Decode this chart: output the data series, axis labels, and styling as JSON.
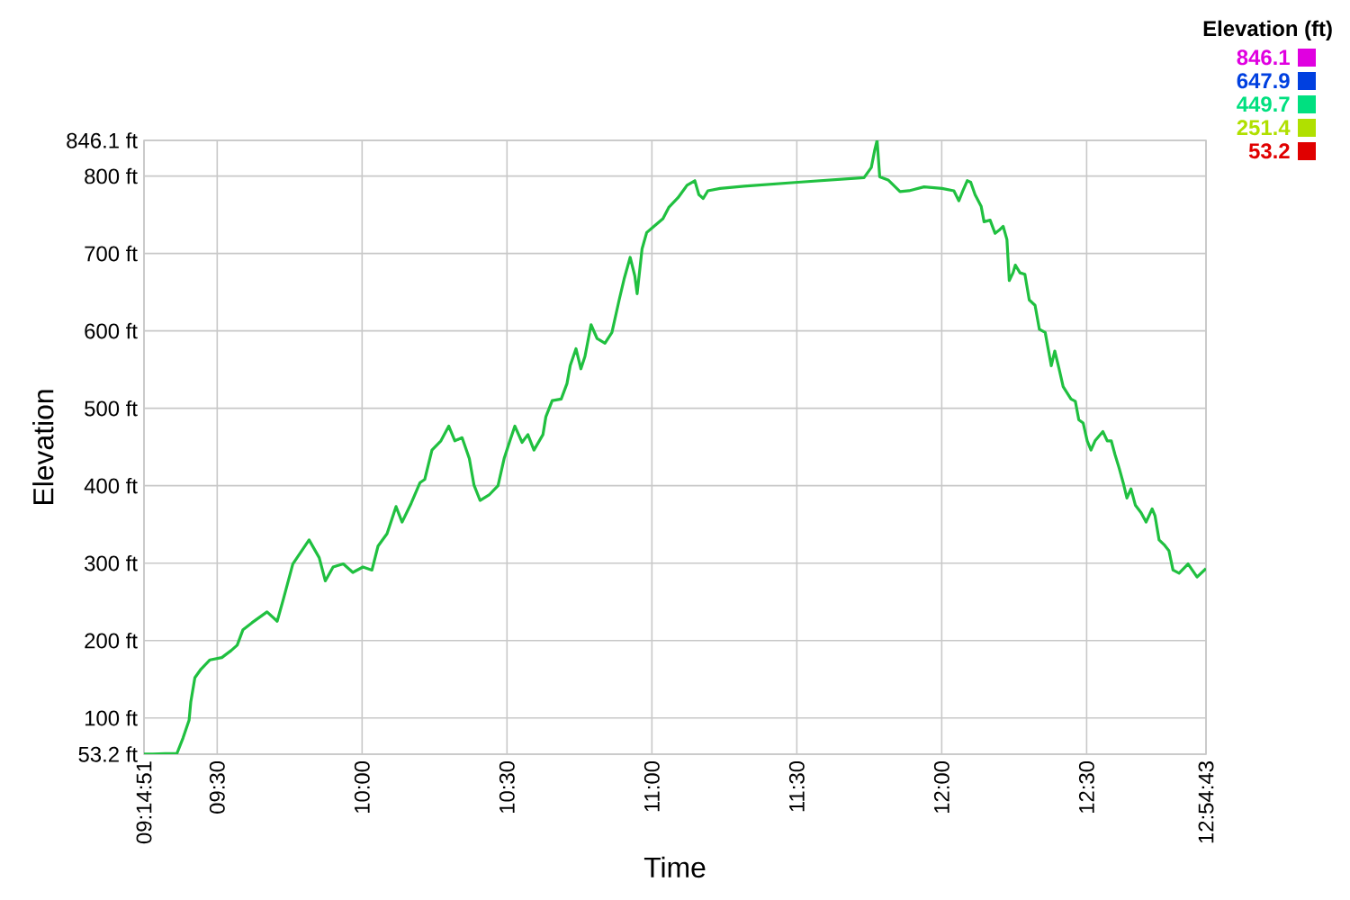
{
  "chart_data": {
    "type": "line",
    "xlabel": "Time",
    "ylabel": "Elevation",
    "clabel": "Elevation (ft)",
    "clim": [
      53.2,
      846.1
    ],
    "cticks": [
      53.2,
      251.4,
      449.7,
      647.9,
      846.1
    ],
    "xlim": [
      9.2475,
      12.9119
    ],
    "xticks": [
      {
        "value": 9.2475,
        "label": "09:14:51"
      },
      {
        "value": 9.5,
        "label": "09:30"
      },
      {
        "value": 10,
        "label": "10:00"
      },
      {
        "value": 10.5,
        "label": "10:30"
      },
      {
        "value": 11,
        "label": "11:00"
      },
      {
        "value": 11.5,
        "label": "11:30"
      },
      {
        "value": 12,
        "label": "12:00"
      },
      {
        "value": 12.5,
        "label": "12:30"
      },
      {
        "value": 12.9119,
        "label": "12:54:43"
      }
    ],
    "ylim": [
      53.2,
      846.1
    ],
    "yticks": [
      {
        "value": 53.2,
        "label": "53.2 ft"
      },
      {
        "value": 100,
        "label": "100 ft"
      },
      {
        "value": 200,
        "label": "200 ft"
      },
      {
        "value": 300,
        "label": "300 ft"
      },
      {
        "value": 400,
        "label": "400 ft"
      },
      {
        "value": 500,
        "label": "500 ft"
      },
      {
        "value": 600,
        "label": "600 ft"
      },
      {
        "value": 700,
        "label": "700 ft"
      },
      {
        "value": 800,
        "label": "800 ft"
      },
      {
        "value": 846.1,
        "label": "846.1 ft"
      }
    ],
    "grid": true,
    "marker": "none",
    "line_style": "solid",
    "x": [
      9.2475,
      9.278,
      9.32,
      9.361,
      9.382,
      9.403,
      9.409,
      9.423,
      9.444,
      9.475,
      9.516,
      9.548,
      9.569,
      9.589,
      9.62,
      9.672,
      9.707,
      9.728,
      9.761,
      9.817,
      9.852,
      9.873,
      9.9,
      9.935,
      9.968,
      10.003,
      10.034,
      10.055,
      10.086,
      10.117,
      10.138,
      10.169,
      10.2,
      10.216,
      10.241,
      10.272,
      10.299,
      10.32,
      10.345,
      10.37,
      10.386,
      10.407,
      10.438,
      10.469,
      10.49,
      10.51,
      10.527,
      10.552,
      10.572,
      10.593,
      10.624,
      10.634,
      10.656,
      10.687,
      10.707,
      10.718,
      10.738,
      10.755,
      10.769,
      10.79,
      10.811,
      10.838,
      10.862,
      10.887,
      10.904,
      10.925,
      10.941,
      10.949,
      10.966,
      10.982,
      11.007,
      11.038,
      11.059,
      11.09,
      11.121,
      11.148,
      11.162,
      11.177,
      11.193,
      11.235,
      11.318,
      11.504,
      11.732,
      11.757,
      11.769,
      11.777,
      11.786,
      11.815,
      11.856,
      11.887,
      11.939,
      12.001,
      12.042,
      12.059,
      12.073,
      12.088,
      12.1,
      12.115,
      12.136,
      12.146,
      12.167,
      12.184,
      12.198,
      12.212,
      12.225,
      12.233,
      12.246,
      12.254,
      12.27,
      12.287,
      12.302,
      12.322,
      12.337,
      12.357,
      12.378,
      12.39,
      12.405,
      12.419,
      12.446,
      12.461,
      12.473,
      12.488,
      12.502,
      12.515,
      12.529,
      12.556,
      12.571,
      12.585,
      12.598,
      12.612,
      12.626,
      12.639,
      12.653,
      12.668,
      12.688,
      12.705,
      12.726,
      12.736,
      12.75,
      12.767,
      12.784,
      12.798,
      12.819,
      12.85,
      12.881,
      12.9119
    ],
    "color": "#20c040",
    "values": [
      53.2,
      53.2,
      54,
      54,
      74,
      97,
      121,
      152,
      163,
      175,
      178,
      187,
      194,
      214,
      223,
      237,
      225,
      253,
      299,
      330,
      307,
      277,
      295,
      299,
      288,
      295,
      291,
      322,
      338,
      373,
      353,
      377,
      404,
      408,
      446,
      458,
      477,
      458,
      462,
      435,
      401,
      381,
      388,
      400,
      435,
      458,
      477,
      456,
      466,
      446,
      466,
      489,
      510,
      512,
      532,
      555,
      577,
      551,
      567,
      608,
      590,
      584,
      598,
      640,
      667,
      695,
      671,
      648,
      706,
      727,
      735,
      745,
      760,
      772,
      788,
      794,
      776,
      771,
      781,
      784,
      787,
      792,
      798,
      811,
      834,
      846.1,
      799,
      795,
      780,
      781,
      786,
      784,
      781,
      768,
      781,
      794,
      792,
      776,
      761,
      741,
      743,
      726,
      730,
      735,
      718,
      665,
      675,
      685,
      675,
      673,
      640,
      633,
      602,
      598,
      555,
      574,
      551,
      528,
      512,
      509,
      485,
      481,
      458,
      446,
      458,
      470,
      458,
      458,
      440,
      423,
      404,
      384,
      396,
      375,
      365,
      353,
      370,
      361,
      330,
      324,
      316,
      291,
      287,
      299,
      282,
      293
    ]
  }
}
